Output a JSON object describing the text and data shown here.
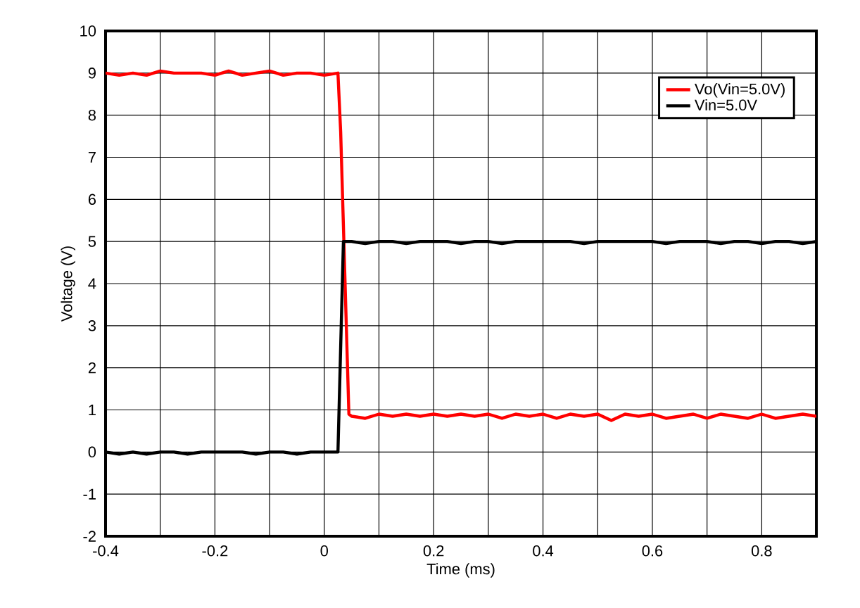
{
  "chart_data": {
    "type": "line",
    "xlabel": "Time (ms)",
    "ylabel": "Voltage (V)",
    "xlim": [
      -0.4,
      0.9
    ],
    "ylim": [
      -2,
      10
    ],
    "xticks": [
      -0.4,
      {
        "value": -0.3,
        "label": null
      },
      -0.2,
      {
        "value": -0.1,
        "label": null
      },
      0,
      {
        "value": 0.1,
        "label": null
      },
      0.2,
      {
        "value": 0.3,
        "label": null
      },
      0.4,
      {
        "value": 0.5,
        "label": null
      },
      0.6,
      {
        "value": 0.7,
        "label": null
      },
      0.8,
      {
        "value": 0.9,
        "label": null
      }
    ],
    "yticks": [
      -2,
      -1,
      0,
      1,
      2,
      3,
      4,
      5,
      6,
      7,
      8,
      9,
      10
    ],
    "grid": true,
    "legend": "top right",
    "series": [
      {
        "name": "Vo(Vin=5.0V)",
        "color": "#ff0000",
        "x": [
          -0.4,
          -0.375,
          -0.35,
          -0.325,
          -0.3,
          -0.275,
          -0.25,
          -0.225,
          -0.2,
          -0.175,
          -0.15,
          -0.125,
          -0.1,
          -0.075,
          -0.05,
          -0.025,
          0,
          0.025,
          0.03,
          0.045,
          0.05,
          0.075,
          0.1,
          0.125,
          0.15,
          0.175,
          0.2,
          0.225,
          0.25,
          0.275,
          0.3,
          0.325,
          0.35,
          0.375,
          0.4,
          0.425,
          0.45,
          0.475,
          0.5,
          0.525,
          0.55,
          0.575,
          0.6,
          0.625,
          0.65,
          0.675,
          0.7,
          0.725,
          0.75,
          0.775,
          0.8,
          0.825,
          0.85,
          0.875,
          0.9
        ],
        "values": [
          9.0,
          8.95,
          9.0,
          8.95,
          9.05,
          9.0,
          9.0,
          9.0,
          8.95,
          9.05,
          8.95,
          9.0,
          9.05,
          8.95,
          9.0,
          9.0,
          8.95,
          9.0,
          7.6,
          0.9,
          0.85,
          0.8,
          0.9,
          0.85,
          0.9,
          0.85,
          0.9,
          0.85,
          0.9,
          0.85,
          0.9,
          0.8,
          0.9,
          0.85,
          0.9,
          0.8,
          0.9,
          0.85,
          0.9,
          0.75,
          0.9,
          0.85,
          0.9,
          0.8,
          0.85,
          0.9,
          0.8,
          0.9,
          0.85,
          0.8,
          0.9,
          0.8,
          0.85,
          0.9,
          0.85
        ]
      },
      {
        "name": "Vin=5.0V",
        "color": "#000000",
        "x": [
          -0.4,
          -0.375,
          -0.35,
          -0.325,
          -0.3,
          -0.275,
          -0.25,
          -0.225,
          -0.2,
          -0.175,
          -0.15,
          -0.125,
          -0.1,
          -0.075,
          -0.05,
          -0.025,
          0,
          0.025,
          0.035,
          0.05,
          0.075,
          0.1,
          0.125,
          0.15,
          0.175,
          0.2,
          0.225,
          0.25,
          0.275,
          0.3,
          0.325,
          0.35,
          0.375,
          0.4,
          0.425,
          0.45,
          0.475,
          0.5,
          0.525,
          0.55,
          0.575,
          0.6,
          0.625,
          0.65,
          0.675,
          0.7,
          0.725,
          0.75,
          0.775,
          0.8,
          0.825,
          0.85,
          0.875,
          0.9
        ],
        "values": [
          0.0,
          -0.05,
          0.0,
          -0.05,
          0.0,
          0.0,
          -0.05,
          0.0,
          0.0,
          0.0,
          0.0,
          -0.05,
          0.0,
          0.0,
          -0.05,
          0.0,
          0.0,
          0.0,
          5.0,
          5.0,
          4.95,
          5.0,
          5.0,
          4.95,
          5.0,
          5.0,
          5.0,
          4.95,
          5.0,
          5.0,
          4.95,
          5.0,
          5.0,
          5.0,
          5.0,
          5.0,
          4.95,
          5.0,
          5.0,
          5.0,
          5.0,
          5.0,
          4.95,
          5.0,
          5.0,
          5.0,
          4.95,
          5.0,
          5.0,
          4.95,
          5.0,
          5.0,
          4.95,
          5.0
        ]
      }
    ]
  }
}
